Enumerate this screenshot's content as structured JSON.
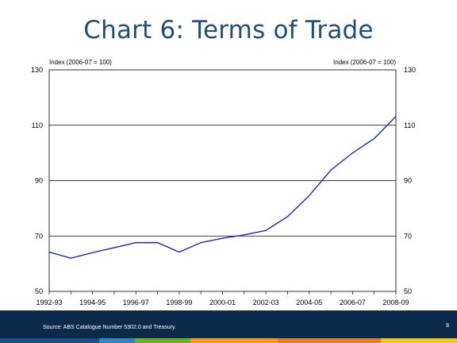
{
  "slide": {
    "title": "Chart 6: Terms of Trade",
    "source": "Source: ABS Catalogue Number 5302.0 and Treasury.",
    "page_number": "8"
  },
  "colors": {
    "title": "#1f4e79",
    "line": "#2020cc",
    "footer": "#0b2a4a",
    "stripes": [
      "#1a4f8a",
      "#2e86c1",
      "#6ab023",
      "#f39c12",
      "#e67e22",
      "#f5c518"
    ]
  },
  "chart_data": {
    "type": "line",
    "title": "",
    "ylabel_left": "Index (2006-07 = 100)",
    "ylabel_right": "Index (2006-07 = 100)",
    "ylim": [
      50,
      130
    ],
    "yticks": [
      50,
      70,
      90,
      110,
      130
    ],
    "gridlines_y": [
      70,
      90,
      110
    ],
    "x": [
      "1992-93",
      "1993-94",
      "1994-95",
      "1995-96",
      "1996-97",
      "1997-98",
      "1998-99",
      "1999-00",
      "2000-01",
      "2001-02",
      "2002-03",
      "2003-04",
      "2004-05",
      "2005-06",
      "2006-07",
      "2007-08",
      "2008-09"
    ],
    "xtick_labels": [
      "1992-93",
      "1994-95",
      "1996-97",
      "1998-99",
      "2000-01",
      "2002-03",
      "2004-05",
      "2006-07",
      "2008-09"
    ],
    "series": [
      {
        "values": [
          64.2,
          62.0,
          64.0,
          65.8,
          67.6,
          67.6,
          64.2,
          67.6,
          69.2,
          70.4,
          72.0,
          77.0,
          84.6,
          93.8,
          100.0,
          105.2,
          113.2
        ]
      }
    ]
  }
}
